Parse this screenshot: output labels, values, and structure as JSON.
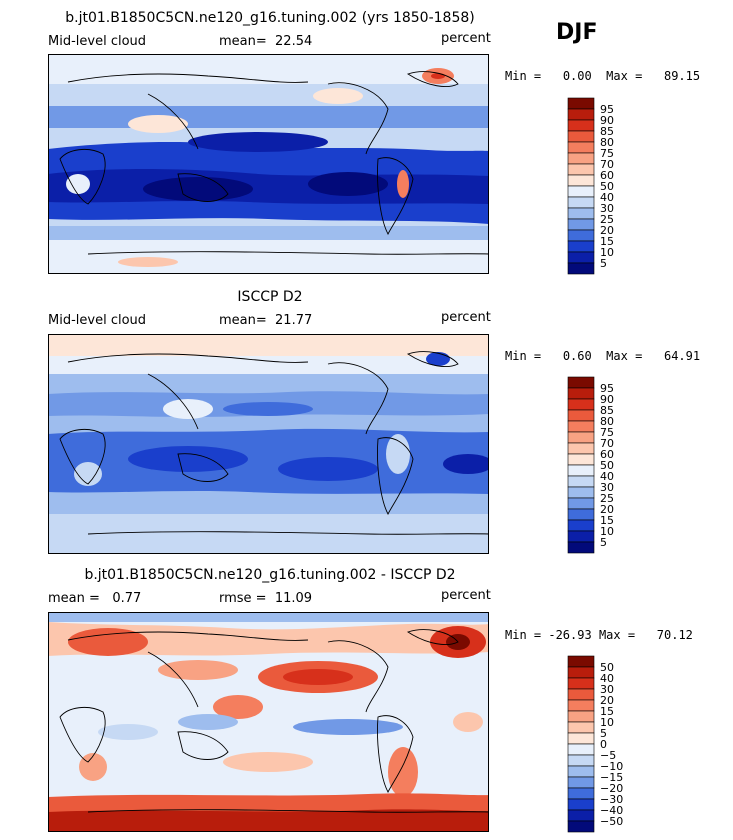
{
  "season": "DJF",
  "panels": [
    {
      "title": "b.jt01.B1850C5CN.ne120_g16.tuning.002 (yrs 1850-1858)",
      "variable": "Mid-level cloud",
      "stat_label": "mean=",
      "stat_value": "22.54",
      "stat2_label": "",
      "stat2_value": "",
      "units": "percent",
      "min_label": "Min =",
      "min_value": "0.00",
      "max_label": "Max =",
      "max_value": "89.15",
      "colorbar_labels": [
        "95",
        "90",
        "85",
        "80",
        "75",
        "70",
        "60",
        "50",
        "40",
        "30",
        "25",
        "20",
        "15",
        "10",
        "5"
      ],
      "colorbar_colors": [
        "#7a0a00",
        "#b81d0c",
        "#d7301b",
        "#ea5a3c",
        "#f47e5e",
        "#f8a283",
        "#fcc6ad",
        "#fde6d8",
        "#e8f0fb",
        "#c6d9f4",
        "#9ebdee",
        "#7199e6",
        "#3f6cdb",
        "#1a3fcc",
        "#0b1fa8",
        "#020a7a"
      ]
    },
    {
      "title": "ISCCP D2",
      "variable": "Mid-level cloud",
      "stat_label": "mean=",
      "stat_value": "21.77",
      "stat2_label": "",
      "stat2_value": "",
      "units": "percent",
      "min_label": "Min =",
      "min_value": "0.60",
      "max_label": "Max =",
      "max_value": "64.91",
      "colorbar_labels": [
        "95",
        "90",
        "85",
        "80",
        "75",
        "70",
        "60",
        "50",
        "40",
        "30",
        "25",
        "20",
        "15",
        "10",
        "5"
      ],
      "colorbar_colors": [
        "#7a0a00",
        "#b81d0c",
        "#d7301b",
        "#ea5a3c",
        "#f47e5e",
        "#f8a283",
        "#fcc6ad",
        "#fde6d8",
        "#e8f0fb",
        "#c6d9f4",
        "#9ebdee",
        "#7199e6",
        "#3f6cdb",
        "#1a3fcc",
        "#0b1fa8",
        "#020a7a"
      ]
    },
    {
      "title": "b.jt01.B1850C5CN.ne120_g16.tuning.002 - ISCCP D2",
      "variable": "",
      "stat_label": "mean =",
      "stat_value": "0.77",
      "stat2_label": "rmse =",
      "stat2_value": "11.09",
      "units": "percent",
      "min_label": "Min =",
      "min_value": "-26.93",
      "max_label": "Max =",
      "max_value": "70.12",
      "colorbar_labels": [
        "50",
        "40",
        "30",
        "20",
        "15",
        "10",
        "5",
        "0",
        "−5",
        "−10",
        "−15",
        "−20",
        "−30",
        "−40",
        "−50"
      ],
      "colorbar_colors": [
        "#7a0a00",
        "#b81d0c",
        "#d7301b",
        "#ea5a3c",
        "#f47e5e",
        "#f8a283",
        "#fcc6ad",
        "#fde6d8",
        "#e8f0fb",
        "#c6d9f4",
        "#9ebdee",
        "#7199e6",
        "#3f6cdb",
        "#1a3fcc",
        "#0b1fa8",
        "#020a7a"
      ]
    }
  ]
}
